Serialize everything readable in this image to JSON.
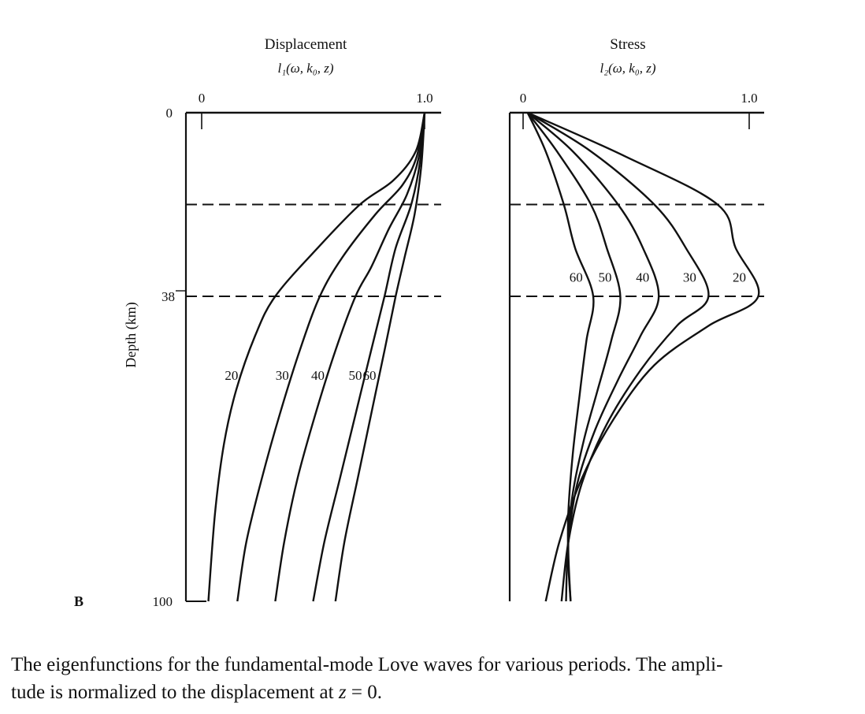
{
  "panel_letter": "B",
  "caption": {
    "line1": "The eigenfunctions for the fundamental-mode Love waves for various periods. The ampli-",
    "line2_before": "tude is normalized to the displacement at ",
    "line2_var": "z",
    "line2_after": " = 0."
  },
  "chart_data": [
    {
      "type": "line",
      "title": "Displacement",
      "subtitle": "l₁(ω, k₀, z)",
      "ylabel": "Depth (km)",
      "xlim": [
        0,
        1.0
      ],
      "ylim": [
        0,
        100
      ],
      "y_inverted": true,
      "x_tick_labels": [
        "0",
        "1.0"
      ],
      "y_tick_labels": [
        "0",
        "38",
        "100"
      ],
      "layer_boundaries_km": [
        19,
        38
      ],
      "series": [
        {
          "name": "20",
          "points": [
            [
              1.0,
              0
            ],
            [
              0.96,
              8
            ],
            [
              0.86,
              14
            ],
            [
              0.71,
              19
            ],
            [
              0.52,
              28
            ],
            [
              0.33,
              38
            ],
            [
              0.24,
              46
            ],
            [
              0.155,
              57
            ],
            [
              0.1,
              68
            ],
            [
              0.06,
              82
            ],
            [
              0.03,
              100
            ]
          ]
        },
        {
          "name": "30",
          "points": [
            [
              1.0,
              0
            ],
            [
              0.965,
              9
            ],
            [
              0.9,
              15
            ],
            [
              0.78,
              21
            ],
            [
              0.63,
              30
            ],
            [
              0.53,
              38
            ],
            [
              0.44,
              49
            ],
            [
              0.35,
              62
            ],
            [
              0.27,
              75
            ],
            [
              0.2,
              88
            ],
            [
              0.16,
              100
            ]
          ]
        },
        {
          "name": "40",
          "points": [
            [
              1.0,
              0
            ],
            [
              0.975,
              9
            ],
            [
              0.92,
              17
            ],
            [
              0.84,
              24
            ],
            [
              0.76,
              32
            ],
            [
              0.69,
              38
            ],
            [
              0.6,
              49
            ],
            [
              0.51,
              62
            ],
            [
              0.43,
              75
            ],
            [
              0.37,
              88
            ],
            [
              0.33,
              100
            ]
          ]
        },
        {
          "name": "50",
          "points": [
            [
              1.0,
              0
            ],
            [
              0.98,
              10
            ],
            [
              0.94,
              19
            ],
            [
              0.87,
              28
            ],
            [
              0.82,
              38
            ],
            [
              0.76,
              49
            ],
            [
              0.69,
              62
            ],
            [
              0.62,
              75
            ],
            [
              0.55,
              88
            ],
            [
              0.5,
              100
            ]
          ]
        },
        {
          "name": "60",
          "points": [
            [
              1.0,
              0
            ],
            [
              0.985,
              11
            ],
            [
              0.955,
              21
            ],
            [
              0.91,
              30
            ],
            [
              0.87,
              38
            ],
            [
              0.82,
              49
            ],
            [
              0.76,
              62
            ],
            [
              0.7,
              75
            ],
            [
              0.64,
              88
            ],
            [
              0.6,
              100
            ]
          ]
        }
      ],
      "series_label_depth_km": 54
    },
    {
      "type": "line",
      "title": "Stress",
      "subtitle": "l₂(ω, k₀, z)",
      "xlim": [
        0,
        1.0
      ],
      "ylim": [
        0,
        100
      ],
      "y_inverted": true,
      "x_tick_labels": [
        "0",
        "1.0"
      ],
      "layer_boundaries_km": [
        19,
        38
      ],
      "series": [
        {
          "name": "20",
          "points": [
            [
              0.02,
              0
            ],
            [
              0.45,
              9
            ],
            [
              0.86,
              19
            ],
            [
              0.94,
              28
            ],
            [
              1.04,
              38
            ],
            [
              0.82,
              44
            ],
            [
              0.58,
              52
            ],
            [
              0.4,
              63
            ],
            [
              0.26,
              75
            ],
            [
              0.16,
              88
            ],
            [
              0.1,
              100
            ]
          ]
        },
        {
          "name": "30",
          "points": [
            [
              0.02,
              0
            ],
            [
              0.3,
              8
            ],
            [
              0.58,
              19
            ],
            [
              0.72,
              28
            ],
            [
              0.82,
              38
            ],
            [
              0.68,
              44
            ],
            [
              0.52,
              53
            ],
            [
              0.37,
              64
            ],
            [
              0.26,
              76
            ],
            [
              0.2,
              88
            ],
            [
              0.17,
              100
            ]
          ]
        },
        {
          "name": "40",
          "points": [
            [
              0.02,
              0
            ],
            [
              0.22,
              8
            ],
            [
              0.42,
              19
            ],
            [
              0.53,
              28
            ],
            [
              0.6,
              38
            ],
            [
              0.52,
              46
            ],
            [
              0.42,
              55
            ],
            [
              0.32,
              65
            ],
            [
              0.24,
              76
            ],
            [
              0.2,
              88
            ],
            [
              0.19,
              100
            ]
          ]
        },
        {
          "name": "50",
          "points": [
            [
              0.02,
              0
            ],
            [
              0.15,
              8
            ],
            [
              0.3,
              19
            ],
            [
              0.37,
              28
            ],
            [
              0.43,
              38
            ],
            [
              0.39,
              47
            ],
            [
              0.33,
              57
            ],
            [
              0.27,
              67
            ],
            [
              0.22,
              78
            ],
            [
              0.2,
              88
            ],
            [
              0.21,
              100
            ]
          ]
        },
        {
          "name": "60",
          "points": [
            [
              0.02,
              0
            ],
            [
              0.1,
              8
            ],
            [
              0.18,
              19
            ],
            [
              0.23,
              28
            ],
            [
              0.31,
              38
            ],
            [
              0.28,
              47
            ],
            [
              0.25,
              58
            ],
            [
              0.22,
              70
            ],
            [
              0.2,
              82
            ],
            [
              0.2,
              92
            ],
            [
              0.21,
              100
            ]
          ]
        }
      ],
      "series_label_depth_km": 34
    }
  ]
}
